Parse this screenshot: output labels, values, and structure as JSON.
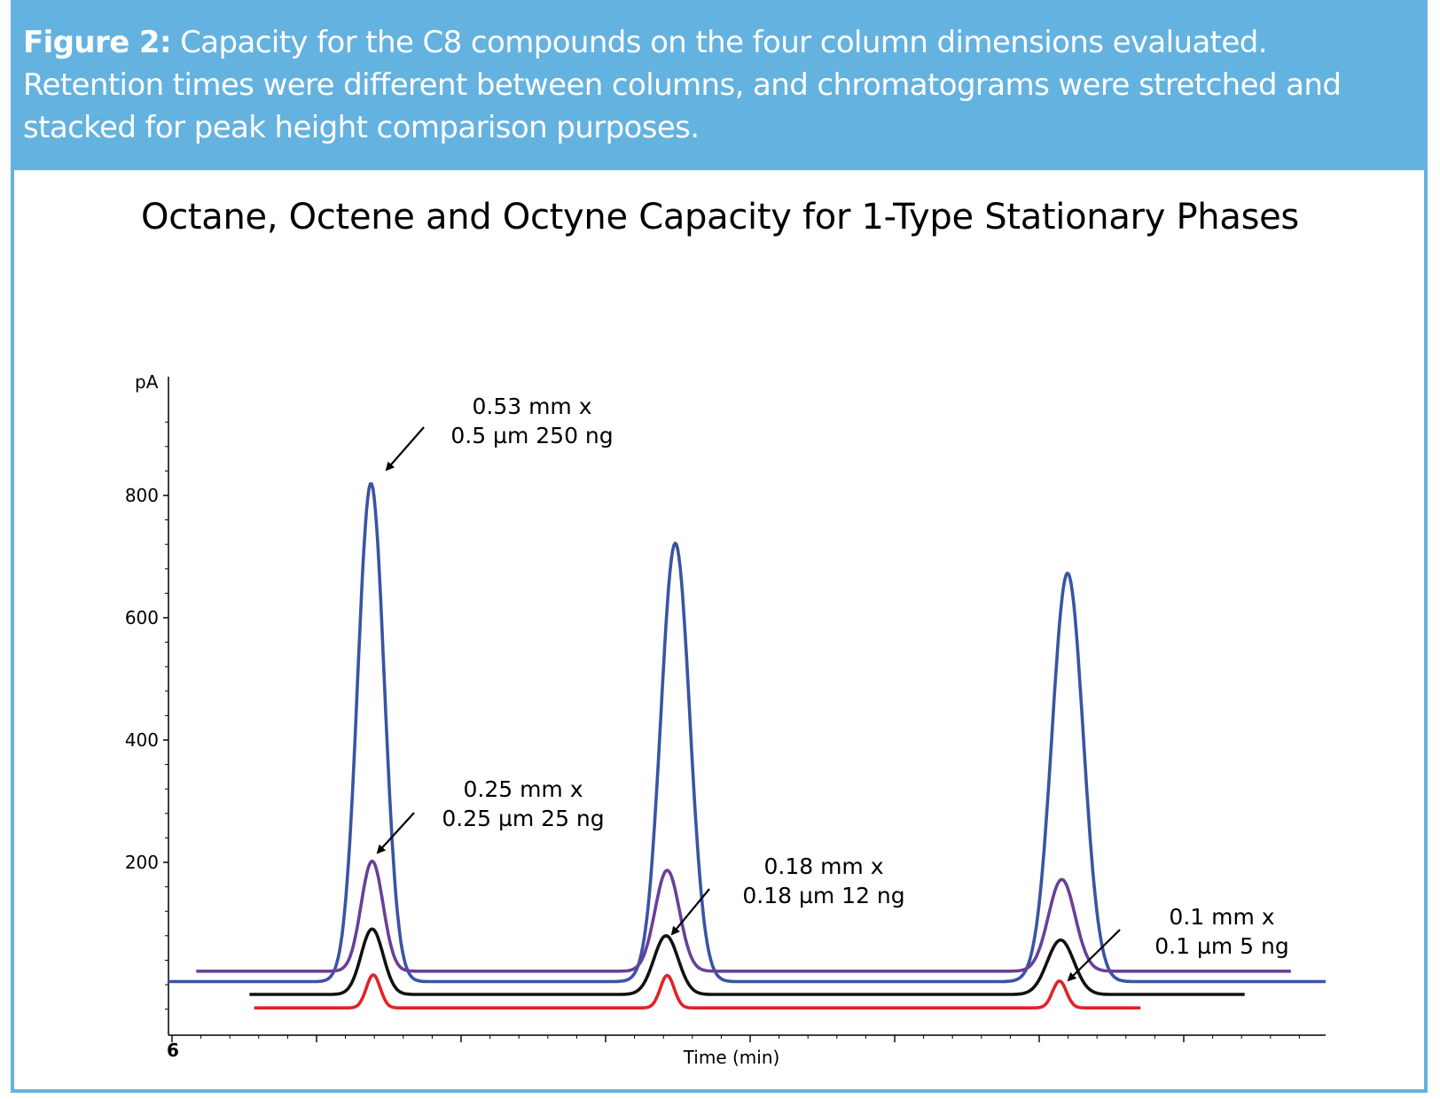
{
  "figure": {
    "caption_lead": "Figure 2:",
    "caption_text": " Capacity for the C8 compounds on the four column dimensions evaluated. Retention times were different between columns, and chromatograms were stretched and stacked for peak height comparison purposes.",
    "border_color": "#64b2e0"
  },
  "chart_data": {
    "type": "line",
    "title": "Octane, Octene and Octyne Capacity for 1-Type Stationary Phases",
    "ylabel": "pA",
    "xlabel": "Time (min)",
    "ylim": [
      -80,
      980
    ],
    "y_ticks": [
      200,
      400,
      600,
      800
    ],
    "x_tick_labels": [
      "6"
    ],
    "peak_names": [
      "Octane",
      "Octene",
      "Octyne"
    ],
    "series": [
      {
        "color": "#3a54a4",
        "baseline": 5,
        "peaks": [
          {
            "center": 0.175,
            "height": 815,
            "sigma": 0.0115
          },
          {
            "center": 0.438,
            "height": 717,
            "sigma": 0.0125
          },
          {
            "center": 0.777,
            "height": 668,
            "sigma": 0.0135
          }
        ]
      },
      {
        "color": "#6a3f98",
        "baseline": 22,
        "peaks": [
          {
            "center": 0.176,
            "height": 180,
            "sigma": 0.0095
          },
          {
            "center": 0.431,
            "height": 165,
            "sigma": 0.0105
          },
          {
            "center": 0.772,
            "height": 150,
            "sigma": 0.0115
          }
        ]
      },
      {
        "color": "#111111",
        "baseline": -16,
        "peaks": [
          {
            "center": 0.176,
            "height": 107,
            "sigma": 0.0095
          },
          {
            "center": 0.43,
            "height": 96,
            "sigma": 0.0105
          },
          {
            "center": 0.771,
            "height": 89,
            "sigma": 0.0115
          }
        ]
      },
      {
        "color": "#e32227",
        "baseline": -38,
        "peaks": [
          {
            "center": 0.177,
            "height": 54,
            "sigma": 0.006
          },
          {
            "center": 0.431,
            "height": 53,
            "sigma": 0.006
          },
          {
            "center": 0.77,
            "height": 44,
            "sigma": 0.006
          }
        ]
      }
    ],
    "annotations": [
      {
        "line1": "0.53 mm x",
        "line2": "0.5 µm 250 ng"
      },
      {
        "line1": "0.25 mm x",
        "line2": "0.25 µm 25 ng"
      },
      {
        "line1": "0.18 mm x",
        "line2": "0.18 µm 12 ng"
      },
      {
        "line1": "0.1 mm x",
        "line2": "0.1 µm 5 ng"
      }
    ]
  }
}
